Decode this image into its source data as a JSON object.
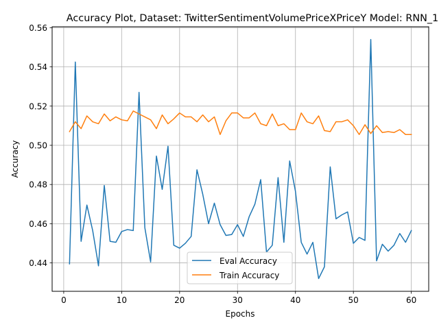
{
  "chart_data": {
    "type": "line",
    "title": "Accuracy Plot, Dataset: TwitterSentimentVolumePriceXPriceY Model: RNN_1",
    "xlabel": "Epochs",
    "ylabel": "Accuracy",
    "xlim": [
      -2.0,
      63.0
    ],
    "ylim": [
      0.4255,
      0.5605
    ],
    "xticks": [
      0,
      10,
      20,
      30,
      40,
      50,
      60
    ],
    "yticks": [
      0.44,
      0.46,
      0.48,
      0.5,
      0.52,
      0.54,
      0.56
    ],
    "ytick_labels": [
      "0.44",
      "0.46",
      "0.48",
      "0.50",
      "0.52",
      "0.54",
      "0.56"
    ],
    "grid": true,
    "legend_position": "lower-center",
    "x": [
      1,
      2,
      3,
      4,
      5,
      6,
      7,
      8,
      9,
      10,
      11,
      12,
      13,
      14,
      15,
      16,
      17,
      18,
      19,
      20,
      21,
      22,
      23,
      24,
      25,
      26,
      27,
      28,
      29,
      30,
      31,
      32,
      33,
      34,
      35,
      36,
      37,
      38,
      39,
      40,
      41,
      42,
      43,
      44,
      45,
      46,
      47,
      48,
      49,
      50,
      51,
      52,
      53,
      54,
      55,
      56,
      57,
      58,
      59,
      60
    ],
    "series": [
      {
        "name": "Eval Accuracy",
        "color": "#1f77b4",
        "values": [
          0.4395,
          0.5425,
          0.451,
          0.4695,
          0.4565,
          0.4385,
          0.4795,
          0.451,
          0.4505,
          0.456,
          0.457,
          0.4565,
          0.527,
          0.458,
          0.4405,
          0.4945,
          0.4775,
          0.4995,
          0.449,
          0.4475,
          0.45,
          0.4535,
          0.4875,
          0.475,
          0.46,
          0.4705,
          0.4595,
          0.454,
          0.4545,
          0.4595,
          0.4535,
          0.4635,
          0.47,
          0.4825,
          0.4455,
          0.449,
          0.4835,
          0.4505,
          0.492,
          0.4765,
          0.4505,
          0.4445,
          0.4505,
          0.432,
          0.438,
          0.489,
          0.4625,
          0.4645,
          0.466,
          0.45,
          0.453,
          0.4515,
          0.554,
          0.441,
          0.4495,
          0.446,
          0.449,
          0.455,
          0.4505,
          0.4565
        ]
      },
      {
        "name": "Train Accuracy",
        "color": "#ff7f0e",
        "values": [
          0.507,
          0.512,
          0.5085,
          0.515,
          0.512,
          0.511,
          0.516,
          0.5125,
          0.5145,
          0.513,
          0.5125,
          0.5175,
          0.516,
          0.5145,
          0.513,
          0.5085,
          0.5155,
          0.511,
          0.5135,
          0.5165,
          0.5145,
          0.5145,
          0.512,
          0.5155,
          0.512,
          0.5145,
          0.5055,
          0.5125,
          0.5165,
          0.5165,
          0.514,
          0.514,
          0.5165,
          0.511,
          0.51,
          0.516,
          0.51,
          0.511,
          0.508,
          0.508,
          0.5165,
          0.512,
          0.511,
          0.515,
          0.5075,
          0.507,
          0.512,
          0.512,
          0.513,
          0.51,
          0.5055,
          0.5105,
          0.506,
          0.51,
          0.5065,
          0.507,
          0.5065,
          0.508,
          0.5055,
          0.5055
        ]
      }
    ]
  }
}
